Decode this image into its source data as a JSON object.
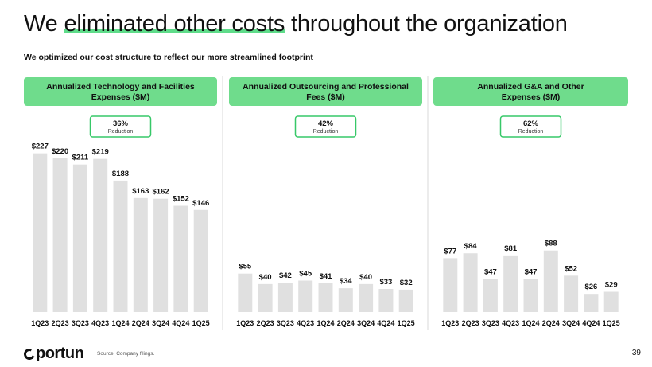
{
  "slide": {
    "title_prefix": "We ",
    "title_highlight": "eliminated other costs",
    "title_suffix": " throughout the organization",
    "subtitle": "We optimized our cost structure to reflect our more streamlined footprint",
    "brand_name": "portun",
    "source": "Source: Company filings.",
    "page_number": "39",
    "colors": {
      "accent": "#6fdc8c",
      "badge_border": "#37c868",
      "bar": "#e0e0e0",
      "divider": "#d9d9d9"
    }
  },
  "chart_data": [
    {
      "type": "bar",
      "title_lines": [
        "Annualized Technology and Facilities",
        "Expenses ($M)"
      ],
      "badge": {
        "percent": "36%",
        "label": "Reduction"
      },
      "categories": [
        "1Q23",
        "2Q23",
        "3Q23",
        "4Q23",
        "1Q24",
        "2Q24",
        "3Q24",
        "4Q24",
        "1Q25"
      ],
      "values": [
        227,
        220,
        211,
        219,
        188,
        163,
        162,
        152,
        146
      ],
      "labels": [
        "$227",
        "$220",
        "$211",
        "$219",
        "$188",
        "$163",
        "$162",
        "$152",
        "$146"
      ],
      "ylim": [
        0,
        230
      ],
      "xlabel": "",
      "ylabel": ""
    },
    {
      "type": "bar",
      "title_lines": [
        "Annualized Outsourcing and Professional",
        "Fees ($M)"
      ],
      "badge": {
        "percent": "42%",
        "label": "Reduction"
      },
      "categories": [
        "1Q23",
        "2Q23",
        "3Q23",
        "4Q23",
        "1Q24",
        "2Q24",
        "3Q24",
        "4Q24",
        "1Q25"
      ],
      "values": [
        55,
        40,
        42,
        45,
        41,
        34,
        40,
        33,
        32
      ],
      "labels": [
        "$55",
        "$40",
        "$42",
        "$45",
        "$41",
        "$34",
        "$40",
        "$33",
        "$32"
      ],
      "ylim": [
        0,
        230
      ],
      "xlabel": "",
      "ylabel": ""
    },
    {
      "type": "bar",
      "title_lines": [
        "Annualized G&A and Other",
        "Expenses ($M)"
      ],
      "badge": {
        "percent": "62%",
        "label": "Reduction"
      },
      "categories": [
        "1Q23",
        "2Q23",
        "3Q23",
        "4Q23",
        "1Q24",
        "2Q24",
        "3Q24",
        "4Q24",
        "1Q25"
      ],
      "values": [
        77,
        84,
        47,
        81,
        47,
        88,
        52,
        26,
        29
      ],
      "labels": [
        "$77",
        "$84",
        "$47",
        "$81",
        "$47",
        "$88",
        "$52",
        "$26",
        "$29"
      ],
      "ylim": [
        0,
        230
      ],
      "xlabel": "",
      "ylabel": ""
    }
  ]
}
